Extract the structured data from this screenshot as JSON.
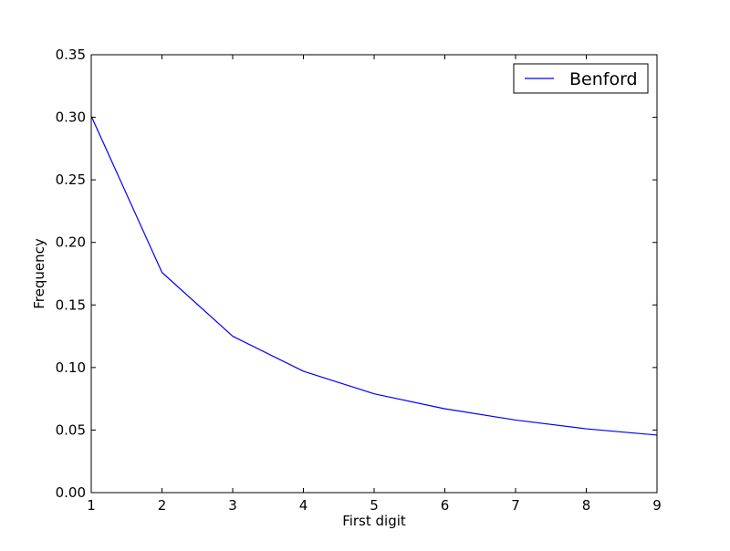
{
  "chart_data": {
    "type": "line",
    "title": "",
    "xlabel": "First digit",
    "ylabel": "Frequency",
    "xlim": [
      1,
      9
    ],
    "ylim": [
      0.0,
      0.35
    ],
    "x": [
      1,
      2,
      3,
      4,
      5,
      6,
      7,
      8,
      9
    ],
    "xticks": [
      "1",
      "2",
      "3",
      "4",
      "5",
      "6",
      "7",
      "8",
      "9"
    ],
    "yticks": [
      "0.00",
      "0.05",
      "0.10",
      "0.15",
      "0.20",
      "0.25",
      "0.30",
      "0.35"
    ],
    "series": [
      {
        "name": "Benford",
        "color": "#0000ff",
        "values": [
          0.301,
          0.176,
          0.125,
          0.097,
          0.079,
          0.067,
          0.058,
          0.051,
          0.046
        ]
      }
    ],
    "grid": false,
    "legend": "top-right"
  }
}
